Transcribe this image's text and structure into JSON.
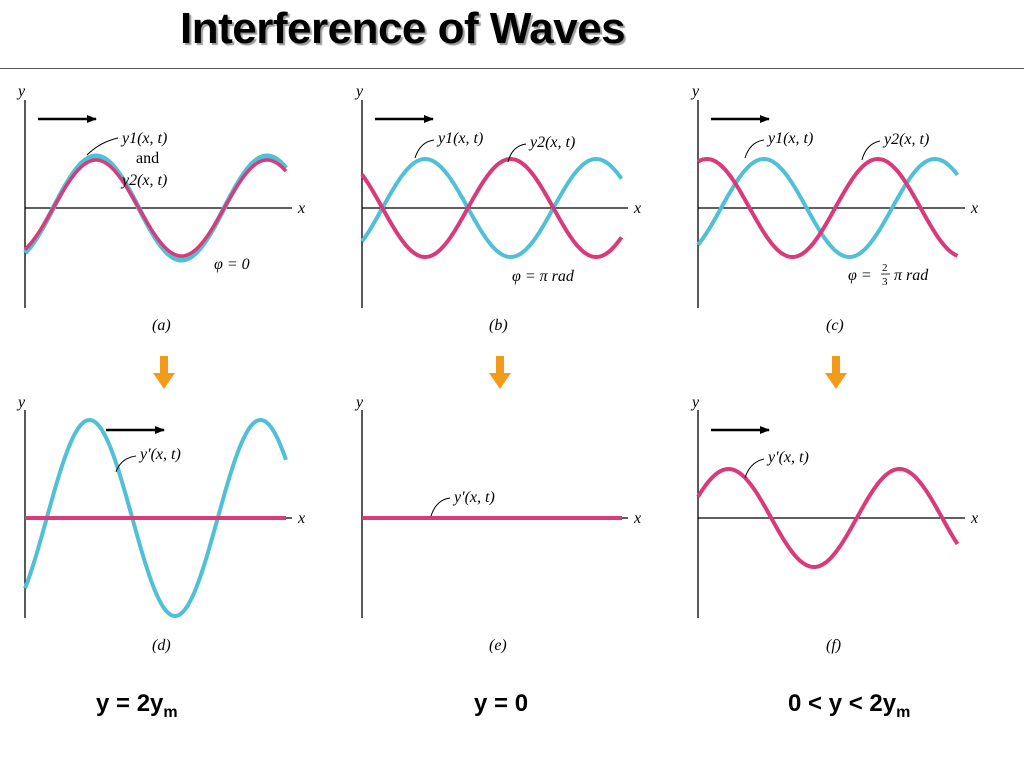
{
  "title": "Interference of Waves",
  "colors": {
    "wave1": "#4fc0d6",
    "wave2": "#d83a7a",
    "arrow_down": "#f29b1a",
    "axis": "#000000"
  },
  "axis_labels": {
    "y": "y",
    "x": "x"
  },
  "panels": {
    "a": {
      "caption": "(a)",
      "label1": "y1(x, t)",
      "and": "and",
      "label2": "y2(x, t)",
      "phase": "φ = 0"
    },
    "b": {
      "caption": "(b)",
      "label1": "y1(x, t)",
      "label2": "y2(x, t)",
      "phase": "φ = π rad"
    },
    "c": {
      "caption": "(c)",
      "label1": "y1(x, t)",
      "label2": "y2(x, t)",
      "phase_prefix": "φ =",
      "phase_num": "2",
      "phase_den": "3",
      "phase_suffix": "π rad"
    },
    "d": {
      "caption": "(d)",
      "label": "y′(x, t)"
    },
    "e": {
      "caption": "(e)",
      "label": "y′(x, t)"
    },
    "f": {
      "caption": "(f)",
      "label": "y′(x, t)"
    }
  },
  "results": {
    "d": {
      "main": "y = 2y",
      "sub": "m"
    },
    "e": {
      "main": "y = 0"
    },
    "f": {
      "main": "0 < y < 2y",
      "sub": "m"
    }
  }
}
